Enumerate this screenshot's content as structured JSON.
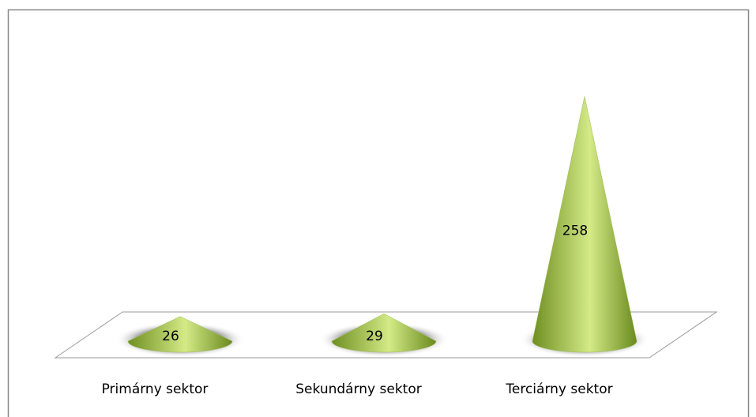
{
  "chart_data": {
    "type": "cone",
    "categories": [
      "Primárny sektor",
      "Sekundárny sektor",
      "Terciárny sektor"
    ],
    "values": [
      26,
      29,
      258
    ],
    "color": "#9bbb59"
  }
}
